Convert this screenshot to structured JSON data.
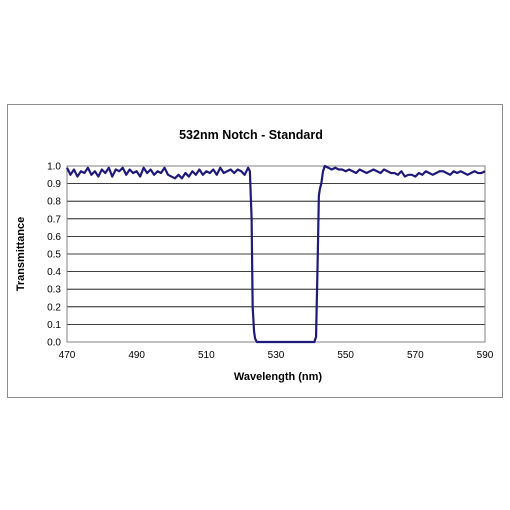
{
  "chart_data": {
    "type": "line",
    "title": "532nm Notch - Standard",
    "xlabel": "Wavelength (nm)",
    "ylabel": "Transmittance",
    "xlim": [
      470,
      590
    ],
    "ylim": [
      0,
      1
    ],
    "x_ticks": [
      "470",
      "490",
      "510",
      "530",
      "550",
      "570",
      "590"
    ],
    "y_ticks": [
      "0.0",
      "0.1",
      "0.2",
      "0.3",
      "0.4",
      "0.5",
      "0.6",
      "0.7",
      "0.8",
      "0.9",
      "1.0"
    ],
    "grid": "horizontal",
    "legend": "none",
    "line_color": "#1f1a7a",
    "series": [
      {
        "x": [
          470,
          471,
          472,
          473,
          474,
          475,
          476,
          477,
          478,
          479,
          480,
          481,
          482,
          483,
          484,
          485,
          486,
          487,
          488,
          489,
          490,
          491,
          492,
          493,
          494,
          495,
          496,
          497,
          498,
          499,
          500,
          501,
          502,
          503,
          504,
          505,
          506,
          507,
          508,
          509,
          510,
          511,
          512,
          513,
          514,
          515,
          516,
          517,
          518,
          519,
          520,
          521,
          522,
          522.5,
          523,
          523.3,
          523.7,
          524,
          524.5,
          525,
          530,
          535,
          540,
          541,
          541.5,
          542,
          542.3,
          542.6,
          543,
          543.5,
          544,
          545,
          546,
          547,
          548,
          549,
          550,
          551,
          552,
          553,
          554,
          555,
          556,
          557,
          558,
          559,
          560,
          561,
          562,
          563,
          564,
          565,
          566,
          567,
          568,
          569,
          570,
          571,
          572,
          573,
          574,
          575,
          576,
          577,
          578,
          579,
          580,
          581,
          582,
          583,
          584,
          585,
          586,
          587,
          588,
          589,
          590
        ],
        "y": [
          0.99,
          0.95,
          0.98,
          0.94,
          0.97,
          0.96,
          0.99,
          0.95,
          0.97,
          0.94,
          0.98,
          0.96,
          0.99,
          0.94,
          0.98,
          0.97,
          0.99,
          0.95,
          0.98,
          0.96,
          0.97,
          0.94,
          0.99,
          0.96,
          0.98,
          0.95,
          0.97,
          0.96,
          0.99,
          0.95,
          0.94,
          0.93,
          0.95,
          0.93,
          0.96,
          0.94,
          0.97,
          0.95,
          0.98,
          0.95,
          0.97,
          0.96,
          0.98,
          0.95,
          0.99,
          0.96,
          0.97,
          0.98,
          0.96,
          0.98,
          0.97,
          0.95,
          0.99,
          0.97,
          0.7,
          0.2,
          0.06,
          0.02,
          0.0,
          0.0,
          0.0,
          0.0,
          0.0,
          0.0,
          0.03,
          0.5,
          0.83,
          0.87,
          0.9,
          0.97,
          1.0,
          0.99,
          0.98,
          0.99,
          0.98,
          0.98,
          0.97,
          0.98,
          0.97,
          0.96,
          0.98,
          0.97,
          0.96,
          0.97,
          0.98,
          0.97,
          0.96,
          0.98,
          0.97,
          0.96,
          0.96,
          0.95,
          0.97,
          0.94,
          0.95,
          0.95,
          0.94,
          0.96,
          0.95,
          0.97,
          0.96,
          0.95,
          0.96,
          0.97,
          0.97,
          0.96,
          0.95,
          0.97,
          0.96,
          0.97,
          0.96,
          0.95,
          0.96,
          0.97,
          0.96,
          0.96,
          0.97
        ]
      }
    ]
  }
}
